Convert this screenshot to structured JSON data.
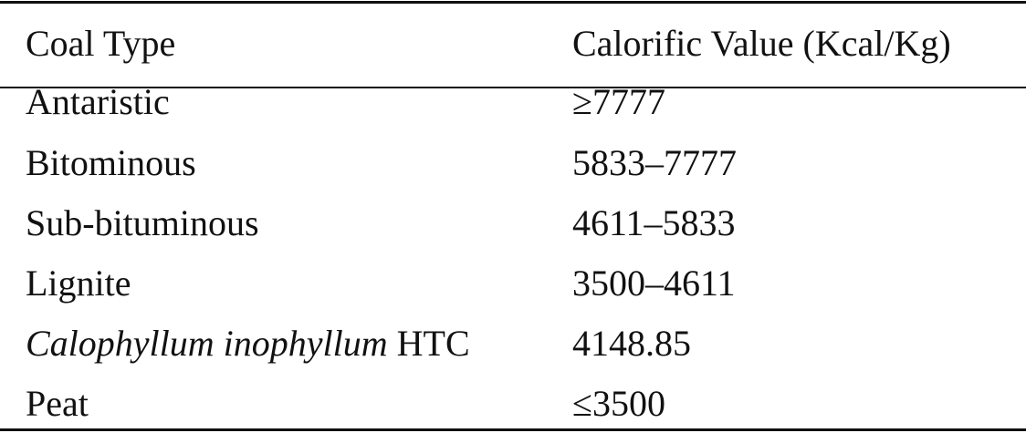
{
  "table": {
    "header": [
      "Coal Type",
      "Calorific Value (Kcal/Kg)"
    ],
    "rows": [
      [
        "Antaristic",
        "≥7777"
      ],
      [
        "Bitominous",
        "5833–7777"
      ],
      [
        "Sub-bituminous",
        "4611–5833"
      ],
      [
        "Lignite",
        "3500–4611"
      ],
      [
        {
          "italic": "Calophyllum inophyllum",
          "plain": "HTC"
        },
        "4148.85"
      ],
      [
        "Peat",
        "≤3500"
      ]
    ]
  }
}
